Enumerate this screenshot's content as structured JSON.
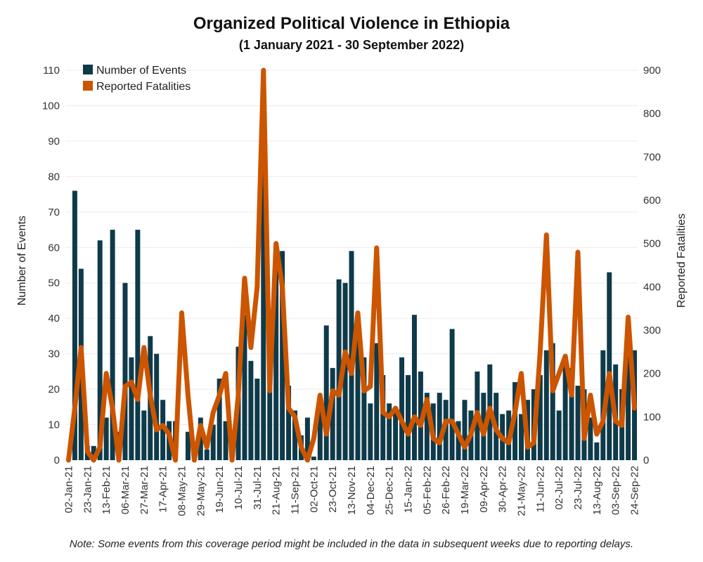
{
  "chart_data": {
    "type": "bar",
    "title": "Organized Political Violence in Ethiopia",
    "subtitle": "(1 January 2021 - 30 September 2022)",
    "note": "Note: Some events from this coverage period might be included in the data in subsequent weeks due to reporting delays.",
    "ylabel_left": "Number of Events",
    "ylabel_right": "Reported Fatalities",
    "ylim_left": [
      0,
      110
    ],
    "ylim_right": [
      0,
      900
    ],
    "yticks_left": [
      0,
      10,
      20,
      30,
      40,
      50,
      60,
      70,
      80,
      90,
      100,
      110
    ],
    "yticks_right": [
      0,
      100,
      200,
      300,
      400,
      500,
      600,
      700,
      800,
      900
    ],
    "x_tick_labels": [
      "02-Jan-21",
      "23-Jan-21",
      "13-Feb-21",
      "06-Mar-21",
      "27-Mar-21",
      "17-Apr-21",
      "08-May-21",
      "29-May-21",
      "19-Jun-21",
      "10-Jul-21",
      "31-Jul-21",
      "21-Aug-21",
      "11-Sep-21",
      "02-Oct-21",
      "23-Oct-21",
      "13-Nov-21",
      "04-Dec-21",
      "25-Dec-21",
      "15-Jan-22",
      "05-Feb-22",
      "26-Feb-22",
      "19-Mar-22",
      "09-Apr-22",
      "30-Apr-22",
      "21-May-22",
      "11-Jun-22",
      "02-Jul-22",
      "23-Jul-22",
      "13-Aug-22",
      "03-Sep-22",
      "24-Sep-22"
    ],
    "legend": {
      "position": "top-left",
      "entries": [
        "Number of Events",
        "Reported Fatalities"
      ]
    },
    "grid": true,
    "colors": {
      "events": "#0e3a4a",
      "fatalities": "#cc5500"
    },
    "series": [
      {
        "name": "Number of Events",
        "axis": "left",
        "type": "bar",
        "values": [
          0,
          76,
          54,
          4,
          4,
          62,
          12,
          65,
          8,
          50,
          29,
          65,
          14,
          35,
          30,
          17,
          11,
          11,
          0,
          8,
          0,
          12,
          3,
          10,
          23,
          11,
          3,
          32,
          41,
          28,
          23,
          96,
          20,
          58,
          59,
          21,
          14,
          7,
          12,
          1,
          14,
          38,
          26,
          51,
          50,
          59,
          36,
          29,
          16,
          33,
          24,
          16,
          15,
          29,
          24,
          41,
          25,
          19,
          16,
          19,
          17,
          37,
          11,
          17,
          14,
          25,
          19,
          27,
          19,
          13,
          14,
          22,
          13,
          17,
          20,
          24,
          31,
          33,
          14,
          29,
          26,
          21,
          20,
          12,
          5,
          31,
          53,
          27,
          20,
          30,
          31
        ]
      },
      {
        "name": "Reported Fatalities",
        "axis": "right",
        "type": "line",
        "values": [
          0,
          120,
          260,
          20,
          0,
          30,
          200,
          120,
          0,
          170,
          180,
          140,
          260,
          150,
          70,
          80,
          60,
          0,
          340,
          150,
          0,
          80,
          30,
          110,
          150,
          200,
          0,
          150,
          420,
          260,
          400,
          900,
          160,
          500,
          400,
          120,
          100,
          30,
          0,
          50,
          150,
          60,
          160,
          150,
          250,
          200,
          340,
          160,
          170,
          490,
          110,
          100,
          120,
          90,
          60,
          100,
          80,
          140,
          50,
          40,
          90,
          90,
          60,
          30,
          60,
          110,
          60,
          120,
          70,
          50,
          40,
          110,
          200,
          30,
          40,
          250,
          520,
          160,
          200,
          240,
          150,
          480,
          50,
          150,
          60,
          90,
          200,
          90,
          80,
          330,
          120
        ]
      }
    ]
  }
}
